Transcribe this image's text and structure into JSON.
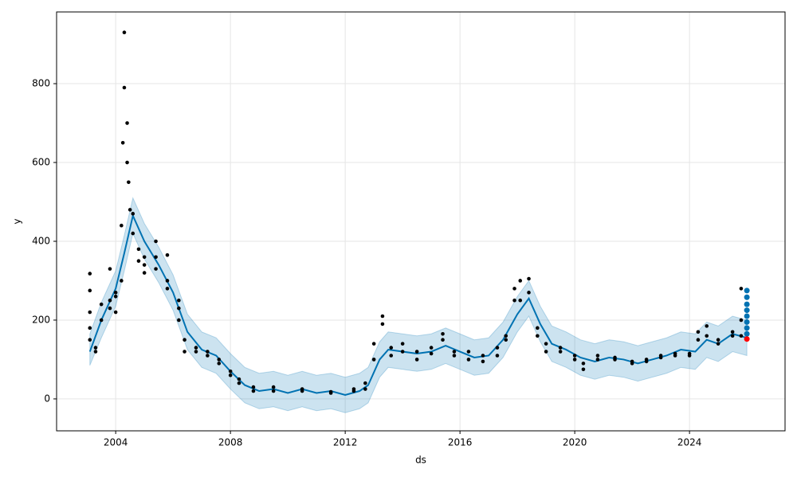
{
  "chart_data": {
    "type": "scatter",
    "xlabel": "ds",
    "ylabel": "y",
    "xlim": [
      2001.94,
      2027.33
    ],
    "ylim": [
      -81,
      982
    ],
    "xticks": [
      2004,
      2008,
      2012,
      2016,
      2020,
      2024
    ],
    "yticks": [
      0,
      200,
      400,
      600,
      800
    ],
    "grid": true,
    "series": [
      {
        "type": "band",
        "color": "#0072b2",
        "x": [
          2003.1,
          2003.5,
          2004.0,
          2004.3,
          2004.6,
          2005.0,
          2005.5,
          2006.0,
          2006.5,
          2007.0,
          2007.5,
          2008.0,
          2008.5,
          2009.0,
          2009.5,
          2010.0,
          2010.5,
          2011.0,
          2011.5,
          2012.0,
          2012.5,
          2012.8,
          2013.2,
          2013.5,
          2014.0,
          2014.5,
          2015.0,
          2015.5,
          2016.0,
          2016.5,
          2017.0,
          2017.5,
          2018.0,
          2018.4,
          2018.8,
          2019.2,
          2019.7,
          2020.2,
          2020.7,
          2021.2,
          2021.7,
          2022.2,
          2022.7,
          2023.2,
          2023.7,
          2024.2,
          2024.6,
          2025.0,
          2025.5,
          2026.0
        ],
        "lower": [
          85,
          155,
          235,
          325,
          420,
          355,
          295,
          225,
          125,
          80,
          65,
          25,
          -10,
          -25,
          -20,
          -30,
          -20,
          -30,
          -25,
          -35,
          -25,
          -10,
          55,
          80,
          75,
          70,
          75,
          90,
          75,
          60,
          65,
          105,
          170,
          210,
          145,
          95,
          80,
          60,
          50,
          60,
          55,
          45,
          55,
          65,
          80,
          75,
          105,
          95,
          120,
          110
        ],
        "upper": [
          165,
          245,
          325,
          415,
          510,
          445,
          385,
          315,
          215,
          170,
          155,
          115,
          80,
          65,
          70,
          60,
          70,
          60,
          65,
          55,
          65,
          80,
          145,
          170,
          165,
          160,
          165,
          180,
          165,
          150,
          155,
          195,
          260,
          300,
          235,
          185,
          170,
          150,
          140,
          150,
          145,
          135,
          145,
          155,
          170,
          165,
          195,
          185,
          210,
          200
        ]
      },
      {
        "type": "line",
        "color": "#0072b2",
        "x": [
          2003.1,
          2003.5,
          2004.0,
          2004.3,
          2004.6,
          2005.0,
          2005.5,
          2006.0,
          2006.5,
          2007.0,
          2007.5,
          2008.0,
          2008.5,
          2009.0,
          2009.5,
          2010.0,
          2010.5,
          2011.0,
          2011.5,
          2012.0,
          2012.5,
          2012.8,
          2013.2,
          2013.5,
          2014.0,
          2014.5,
          2015.0,
          2015.5,
          2016.0,
          2016.5,
          2017.0,
          2017.5,
          2018.0,
          2018.4,
          2018.8,
          2019.2,
          2019.7,
          2020.2,
          2020.7,
          2021.2,
          2021.7,
          2022.2,
          2022.7,
          2023.2,
          2023.7,
          2024.2,
          2024.6,
          2025.0,
          2025.5,
          2026.0
        ],
        "values": [
          120,
          200,
          280,
          370,
          465,
          400,
          340,
          270,
          170,
          125,
          110,
          70,
          35,
          20,
          25,
          15,
          25,
          15,
          20,
          10,
          20,
          35,
          100,
          125,
          120,
          115,
          120,
          135,
          120,
          105,
          110,
          150,
          215,
          255,
          190,
          140,
          125,
          105,
          95,
          105,
          100,
          90,
          100,
          110,
          125,
          120,
          150,
          140,
          165,
          155
        ]
      },
      {
        "type": "scatter",
        "color": "#000000",
        "x": [
          2003.1,
          2003.1,
          2003.1,
          2003.1,
          2003.1,
          2003.3,
          2003.3,
          2003.5,
          2003.5,
          2003.8,
          2003.8,
          2003.8,
          2004.0,
          2004.0,
          2004.0,
          2004.2,
          2004.2,
          2004.25,
          2004.3,
          2004.3,
          2004.4,
          2004.4,
          2004.45,
          2004.5,
          2004.6,
          2004.6,
          2004.8,
          2004.8,
          2005.0,
          2005.0,
          2005.0,
          2005.4,
          2005.4,
          2005.4,
          2005.8,
          2005.8,
          2005.8,
          2006.2,
          2006.2,
          2006.2,
          2006.4,
          2006.4,
          2006.8,
          2006.8,
          2007.2,
          2007.2,
          2007.6,
          2007.6,
          2008.0,
          2008.0,
          2008.3,
          2008.3,
          2008.8,
          2008.8,
          2009.5,
          2009.5,
          2010.5,
          2010.5,
          2011.5,
          2011.5,
          2012.3,
          2012.3,
          2012.7,
          2012.7,
          2013.0,
          2013.0,
          2013.3,
          2013.3,
          2013.6,
          2013.6,
          2014.0,
          2014.0,
          2014.5,
          2014.5,
          2015.0,
          2015.0,
          2015.4,
          2015.4,
          2015.8,
          2015.8,
          2016.3,
          2016.3,
          2016.8,
          2016.8,
          2017.3,
          2017.3,
          2017.6,
          2017.6,
          2017.9,
          2017.9,
          2018.1,
          2018.1,
          2018.4,
          2018.4,
          2018.7,
          2018.7,
          2019.0,
          2019.0,
          2019.5,
          2019.5,
          2020.0,
          2020.0,
          2020.3,
          2020.3,
          2020.8,
          2020.8,
          2021.4,
          2021.4,
          2022.0,
          2022.0,
          2022.5,
          2022.5,
          2023.0,
          2023.0,
          2023.5,
          2023.5,
          2024.0,
          2024.0,
          2024.3,
          2024.3,
          2024.6,
          2024.6,
          2025.0,
          2025.0,
          2025.5,
          2025.5,
          2025.8,
          2025.8,
          2025.8
        ],
        "values": [
          318,
          275,
          220,
          180,
          150,
          130,
          120,
          200,
          240,
          230,
          250,
          330,
          220,
          260,
          270,
          300,
          440,
          650,
          790,
          930,
          600,
          700,
          550,
          480,
          470,
          420,
          380,
          350,
          340,
          360,
          320,
          330,
          400,
          360,
          300,
          280,
          365,
          230,
          200,
          250,
          150,
          120,
          130,
          120,
          110,
          120,
          100,
          90,
          70,
          60,
          40,
          50,
          20,
          30,
          20,
          30,
          20,
          25,
          18,
          15,
          20,
          25,
          25,
          40,
          100,
          140,
          190,
          210,
          110,
          130,
          120,
          140,
          100,
          120,
          115,
          130,
          150,
          165,
          120,
          110,
          100,
          120,
          110,
          95,
          110,
          130,
          150,
          160,
          250,
          280,
          300,
          250,
          305,
          270,
          180,
          160,
          140,
          120,
          130,
          120,
          110,
          100,
          75,
          90,
          110,
          100,
          105,
          100,
          95,
          90,
          100,
          95,
          105,
          110,
          110,
          115,
          115,
          110,
          150,
          170,
          185,
          160,
          140,
          150,
          170,
          160,
          280,
          200,
          160
        ]
      },
      {
        "type": "scatter",
        "color": "#0072b2",
        "x": [
          2026.0,
          2026.0,
          2026.0,
          2026.0,
          2026.0,
          2026.0,
          2026.0,
          2026.0
        ],
        "values": [
          165,
          180,
          195,
          210,
          225,
          240,
          258,
          275
        ]
      },
      {
        "type": "scatter",
        "color": "#ff0000",
        "x": [
          2026.0
        ],
        "values": [
          152
        ]
      }
    ]
  }
}
